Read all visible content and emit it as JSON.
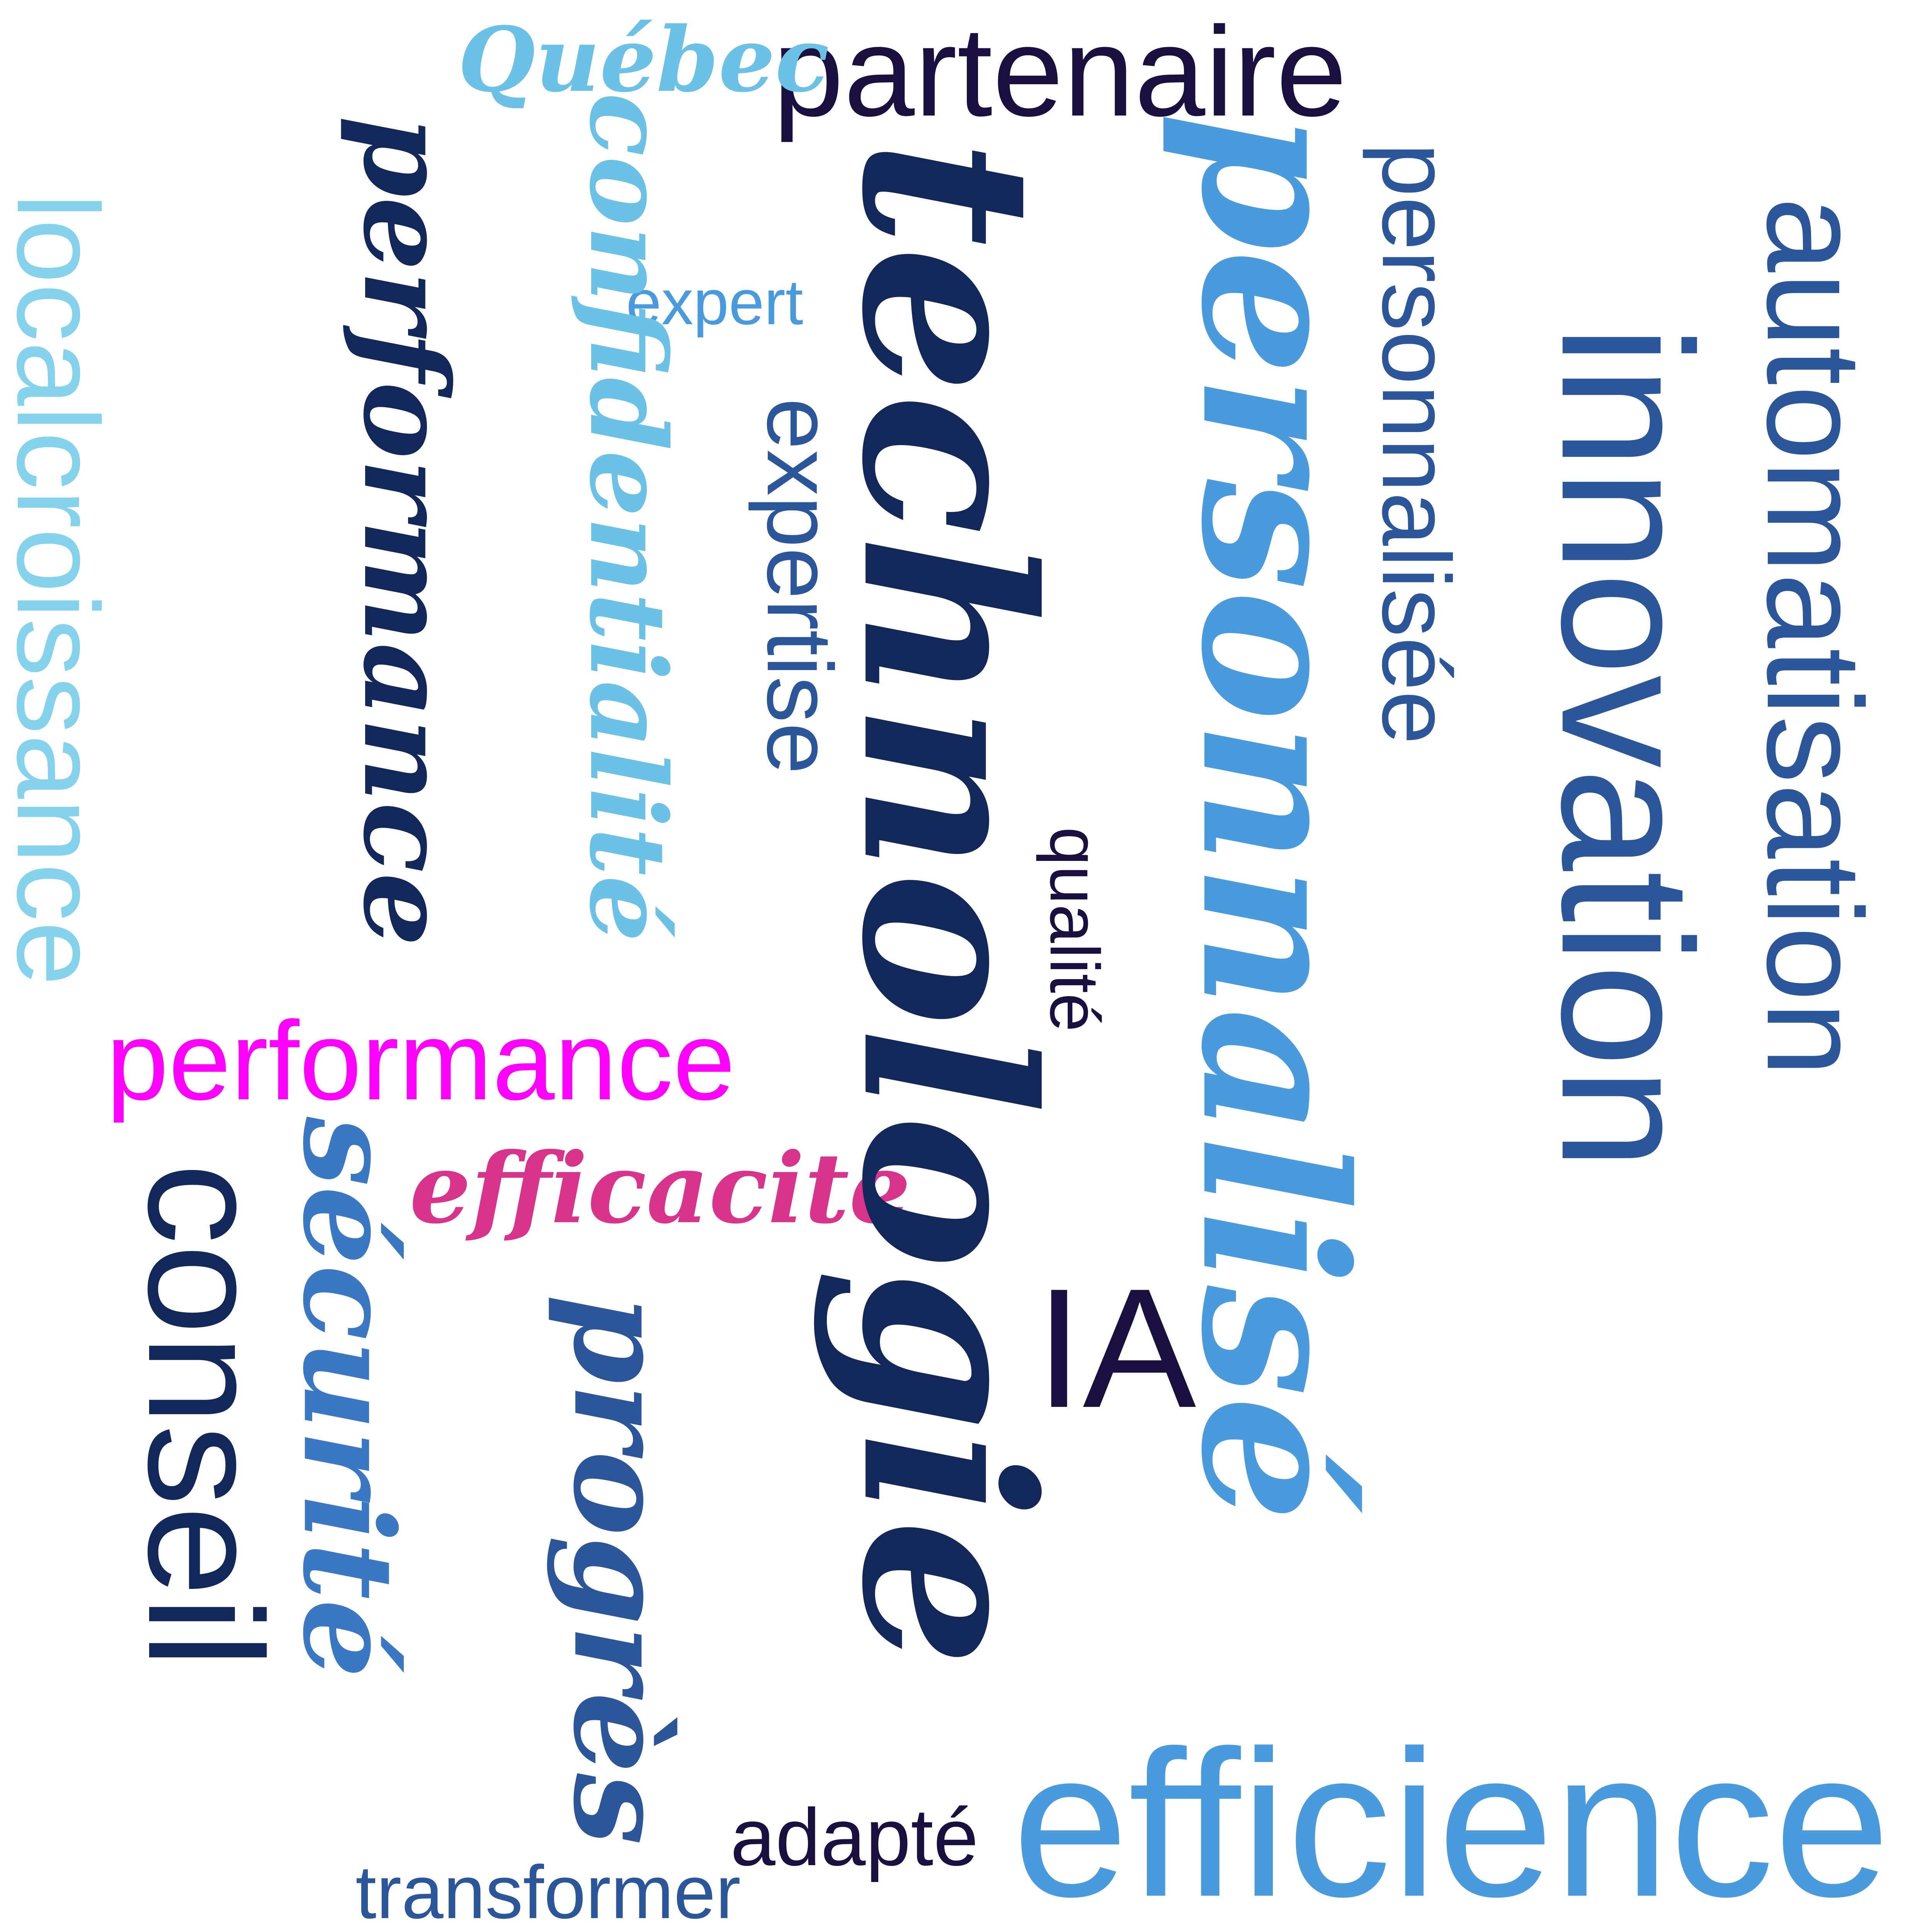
{
  "colors": {
    "navy": "#12285A",
    "blue": "#2B579A",
    "mid_blue": "#4A9ADE",
    "light_blue": "#6BC1E6",
    "pale_blue": "#85D2EC",
    "dark_purple": "#1A103F",
    "magenta": "#FF00FF",
    "pink": "#D8348C"
  },
  "words": {
    "quebec": "Québec",
    "partenaire": "partenaire",
    "localcroissance": "localcroissance",
    "performance_script": "performance",
    "confidentialite": "confidentialité",
    "expert": "expert",
    "expertise": "expertise",
    "technologie": "technologie",
    "personnalise": "personnalisé",
    "personnalisee": "personnalisée",
    "innovation": "innovation",
    "automatisation": "automatisation",
    "qualite": "qualité",
    "performance": "performance",
    "efficacite": "efficacité",
    "conseil": "conseil",
    "securite": "sécurité",
    "progres": "progrès",
    "ia": "IA",
    "adapte": "adapté",
    "transformer": "transformer",
    "efficience": "efficience"
  }
}
